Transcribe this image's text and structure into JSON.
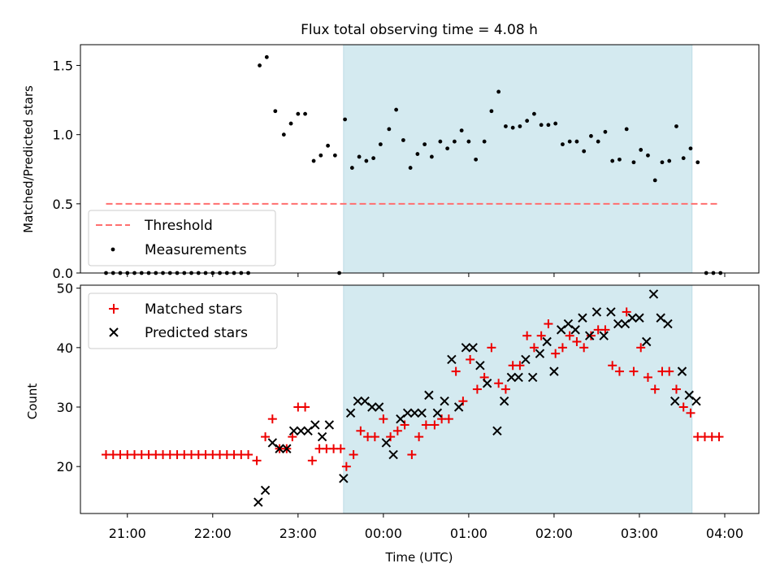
{
  "chart_data": [
    {
      "type": "scatter",
      "title": "Flux total observing time = 4.08 h",
      "xlabel": "",
      "ylabel": "Matched/Predicted stars",
      "ylim": [
        0,
        1.65
      ],
      "yticks": [
        "0.0",
        "0.5",
        "1.0",
        "1.5"
      ],
      "xlim_hours": [
        20.45,
        28.4
      ],
      "observing_window": [
        "23:32",
        "03:37"
      ],
      "threshold": {
        "name": "Threshold",
        "value": 0.5,
        "x_start": "20:45",
        "x_end": "03:55",
        "color": "#ff6f6f"
      },
      "legend": {
        "placement": "lower-left",
        "entries": [
          "Threshold",
          "Measurements"
        ]
      },
      "series": [
        {
          "name": "Measurements",
          "color": "#000000",
          "marker": "dot",
          "points": [
            [
              "20:45",
              0
            ],
            [
              "20:50",
              0
            ],
            [
              "20:55",
              0
            ],
            [
              "21:00",
              0
            ],
            [
              "21:05",
              0
            ],
            [
              "21:10",
              0
            ],
            [
              "21:15",
              0
            ],
            [
              "21:20",
              0
            ],
            [
              "21:25",
              0
            ],
            [
              "21:30",
              0
            ],
            [
              "21:35",
              0
            ],
            [
              "21:40",
              0
            ],
            [
              "21:45",
              0
            ],
            [
              "21:50",
              0
            ],
            [
              "21:55",
              0
            ],
            [
              "22:00",
              0
            ],
            [
              "22:05",
              0
            ],
            [
              "22:10",
              0
            ],
            [
              "22:15",
              0
            ],
            [
              "22:20",
              0
            ],
            [
              "22:25",
              0
            ],
            [
              "22:33",
              1.5
            ],
            [
              "22:38",
              1.56
            ],
            [
              "22:44",
              1.17
            ],
            [
              "22:50",
              1.0
            ],
            [
              "22:55",
              1.08
            ],
            [
              "23:00",
              1.15
            ],
            [
              "23:05",
              1.15
            ],
            [
              "23:11",
              0.81
            ],
            [
              "23:16",
              0.85
            ],
            [
              "23:21",
              0.92
            ],
            [
              "23:26",
              0.85
            ],
            [
              "23:29",
              0
            ],
            [
              "23:33",
              1.11
            ],
            [
              "23:38",
              0.76
            ],
            [
              "23:43",
              0.84
            ],
            [
              "23:48",
              0.81
            ],
            [
              "23:53",
              0.83
            ],
            [
              "23:58",
              0.93
            ],
            [
              "00:04",
              1.04
            ],
            [
              "00:09",
              1.18
            ],
            [
              "00:14",
              0.96
            ],
            [
              "00:19",
              0.76
            ],
            [
              "00:24",
              0.86
            ],
            [
              "00:29",
              0.93
            ],
            [
              "00:34",
              0.84
            ],
            [
              "00:40",
              0.95
            ],
            [
              "00:45",
              0.9
            ],
            [
              "00:50",
              0.95
            ],
            [
              "00:55",
              1.03
            ],
            [
              "01:00",
              0.95
            ],
            [
              "01:05",
              0.82
            ],
            [
              "01:11",
              0.95
            ],
            [
              "01:16",
              1.17
            ],
            [
              "01:21",
              1.31
            ],
            [
              "01:26",
              1.06
            ],
            [
              "01:31",
              1.05
            ],
            [
              "01:36",
              1.06
            ],
            [
              "01:41",
              1.1
            ],
            [
              "01:46",
              1.15
            ],
            [
              "01:51",
              1.07
            ],
            [
              "01:56",
              1.07
            ],
            [
              "02:01",
              1.08
            ],
            [
              "02:06",
              0.93
            ],
            [
              "02:11",
              0.95
            ],
            [
              "02:16",
              0.95
            ],
            [
              "02:21",
              0.88
            ],
            [
              "02:26",
              0.99
            ],
            [
              "02:31",
              0.95
            ],
            [
              "02:36",
              1.02
            ],
            [
              "02:41",
              0.81
            ],
            [
              "02:46",
              0.82
            ],
            [
              "02:51",
              1.04
            ],
            [
              "02:56",
              0.8
            ],
            [
              "03:01",
              0.89
            ],
            [
              "03:06",
              0.85
            ],
            [
              "03:11",
              0.67
            ],
            [
              "03:16",
              0.8
            ],
            [
              "03:21",
              0.81
            ],
            [
              "03:26",
              1.06
            ],
            [
              "03:31",
              0.83
            ],
            [
              "03:36",
              0.9
            ],
            [
              "03:41",
              0.8
            ],
            [
              "03:47",
              0
            ],
            [
              "03:52",
              0
            ],
            [
              "03:57",
              0
            ]
          ]
        }
      ]
    },
    {
      "type": "scatter",
      "title": "",
      "xlabel": "Time (UTC)",
      "ylabel": "Count",
      "ylim": [
        12.1,
        50.5
      ],
      "yticks": [
        "20",
        "30",
        "40",
        "50"
      ],
      "xticks": [
        "21:00",
        "22:00",
        "23:00",
        "00:00",
        "01:00",
        "02:00",
        "03:00",
        "04:00"
      ],
      "legend": {
        "placement": "top-left",
        "entries": [
          "Matched stars",
          "Predicted stars"
        ]
      },
      "series": [
        {
          "name": "Matched stars",
          "color": "#ee0000",
          "marker": "plus",
          "points": [
            [
              "20:45",
              22
            ],
            [
              "20:50",
              22
            ],
            [
              "20:55",
              22
            ],
            [
              "21:00",
              22
            ],
            [
              "21:05",
              22
            ],
            [
              "21:10",
              22
            ],
            [
              "21:15",
              22
            ],
            [
              "21:20",
              22
            ],
            [
              "21:25",
              22
            ],
            [
              "21:30",
              22
            ],
            [
              "21:35",
              22
            ],
            [
              "21:40",
              22
            ],
            [
              "21:45",
              22
            ],
            [
              "21:50",
              22
            ],
            [
              "21:55",
              22
            ],
            [
              "22:00",
              22
            ],
            [
              "22:05",
              22
            ],
            [
              "22:10",
              22
            ],
            [
              "22:15",
              22
            ],
            [
              "22:20",
              22
            ],
            [
              "22:25",
              22
            ],
            [
              "22:31",
              21
            ],
            [
              "22:37",
              25
            ],
            [
              "22:42",
              28
            ],
            [
              "22:47",
              23
            ],
            [
              "22:52",
              23
            ],
            [
              "22:56",
              25
            ],
            [
              "23:00",
              30
            ],
            [
              "23:05",
              30
            ],
            [
              "23:10",
              21
            ],
            [
              "23:15",
              23
            ],
            [
              "23:20",
              23
            ],
            [
              "23:25",
              23
            ],
            [
              "23:30",
              23
            ],
            [
              "23:34",
              20
            ],
            [
              "23:39",
              22
            ],
            [
              "23:44",
              26
            ],
            [
              "23:49",
              25
            ],
            [
              "23:54",
              25
            ],
            [
              "24:00",
              28
            ],
            [
              "00:05",
              25
            ],
            [
              "00:10",
              26
            ],
            [
              "00:15",
              27
            ],
            [
              "00:20",
              22
            ],
            [
              "00:25",
              25
            ],
            [
              "00:30",
              27
            ],
            [
              "00:36",
              27
            ],
            [
              "00:41",
              28
            ],
            [
              "00:46",
              28
            ],
            [
              "00:51",
              36
            ],
            [
              "00:56",
              31
            ],
            [
              "01:01",
              38
            ],
            [
              "01:06",
              33
            ],
            [
              "01:11",
              35
            ],
            [
              "01:16",
              40
            ],
            [
              "01:21",
              34
            ],
            [
              "01:26",
              33
            ],
            [
              "01:31",
              37
            ],
            [
              "01:36",
              37
            ],
            [
              "01:41",
              42
            ],
            [
              "01:46",
              40
            ],
            [
              "01:51",
              42
            ],
            [
              "01:56",
              44
            ],
            [
              "02:01",
              39
            ],
            [
              "02:06",
              40
            ],
            [
              "02:11",
              42
            ],
            [
              "02:16",
              41
            ],
            [
              "02:21",
              40
            ],
            [
              "02:26",
              42
            ],
            [
              "02:31",
              43
            ],
            [
              "02:36",
              43
            ],
            [
              "02:41",
              37
            ],
            [
              "02:46",
              36
            ],
            [
              "02:51",
              46
            ],
            [
              "02:56",
              36
            ],
            [
              "03:01",
              40
            ],
            [
              "03:06",
              35
            ],
            [
              "03:11",
              33
            ],
            [
              "03:16",
              36
            ],
            [
              "03:21",
              36
            ],
            [
              "03:26",
              33
            ],
            [
              "03:31",
              30
            ],
            [
              "03:36",
              29
            ],
            [
              "03:41",
              25
            ],
            [
              "03:46",
              25
            ],
            [
              "03:51",
              25
            ],
            [
              "03:56",
              25
            ]
          ]
        },
        {
          "name": "Predicted stars",
          "color": "#000000",
          "marker": "x",
          "points": [
            [
              "22:32",
              14
            ],
            [
              "22:37",
              16
            ],
            [
              "22:42",
              24
            ],
            [
              "22:47",
              23
            ],
            [
              "22:52",
              23
            ],
            [
              "22:57",
              26
            ],
            [
              "23:02",
              26
            ],
            [
              "23:07",
              26
            ],
            [
              "23:12",
              27
            ],
            [
              "23:17",
              25
            ],
            [
              "23:22",
              27
            ],
            [
              "23:32",
              18
            ],
            [
              "23:37",
              29
            ],
            [
              "23:42",
              31
            ],
            [
              "23:47",
              31
            ],
            [
              "23:52",
              30
            ],
            [
              "23:57",
              30
            ],
            [
              "00:02",
              24
            ],
            [
              "00:07",
              22
            ],
            [
              "00:12",
              28
            ],
            [
              "00:17",
              29
            ],
            [
              "00:22",
              29
            ],
            [
              "00:27",
              29
            ],
            [
              "00:32",
              32
            ],
            [
              "00:38",
              29
            ],
            [
              "00:43",
              31
            ],
            [
              "00:48",
              38
            ],
            [
              "00:53",
              30
            ],
            [
              "00:58",
              40
            ],
            [
              "01:03",
              40
            ],
            [
              "01:08",
              37
            ],
            [
              "01:13",
              34
            ],
            [
              "01:20",
              26
            ],
            [
              "01:25",
              31
            ],
            [
              "01:30",
              35
            ],
            [
              "01:35",
              35
            ],
            [
              "01:40",
              38
            ],
            [
              "01:45",
              35
            ],
            [
              "01:50",
              39
            ],
            [
              "01:55",
              41
            ],
            [
              "02:00",
              36
            ],
            [
              "02:05",
              43
            ],
            [
              "02:10",
              44
            ],
            [
              "02:15",
              43
            ],
            [
              "02:20",
              45
            ],
            [
              "02:25",
              42
            ],
            [
              "02:30",
              46
            ],
            [
              "02:35",
              42
            ],
            [
              "02:40",
              46
            ],
            [
              "02:45",
              44
            ],
            [
              "02:50",
              44
            ],
            [
              "02:55",
              45
            ],
            [
              "03:00",
              45
            ],
            [
              "03:05",
              41
            ],
            [
              "03:10",
              49
            ],
            [
              "03:15",
              45
            ],
            [
              "03:20",
              44
            ],
            [
              "03:25",
              31
            ],
            [
              "03:30",
              36
            ],
            [
              "03:35",
              32
            ],
            [
              "03:40",
              31
            ]
          ]
        }
      ]
    }
  ]
}
